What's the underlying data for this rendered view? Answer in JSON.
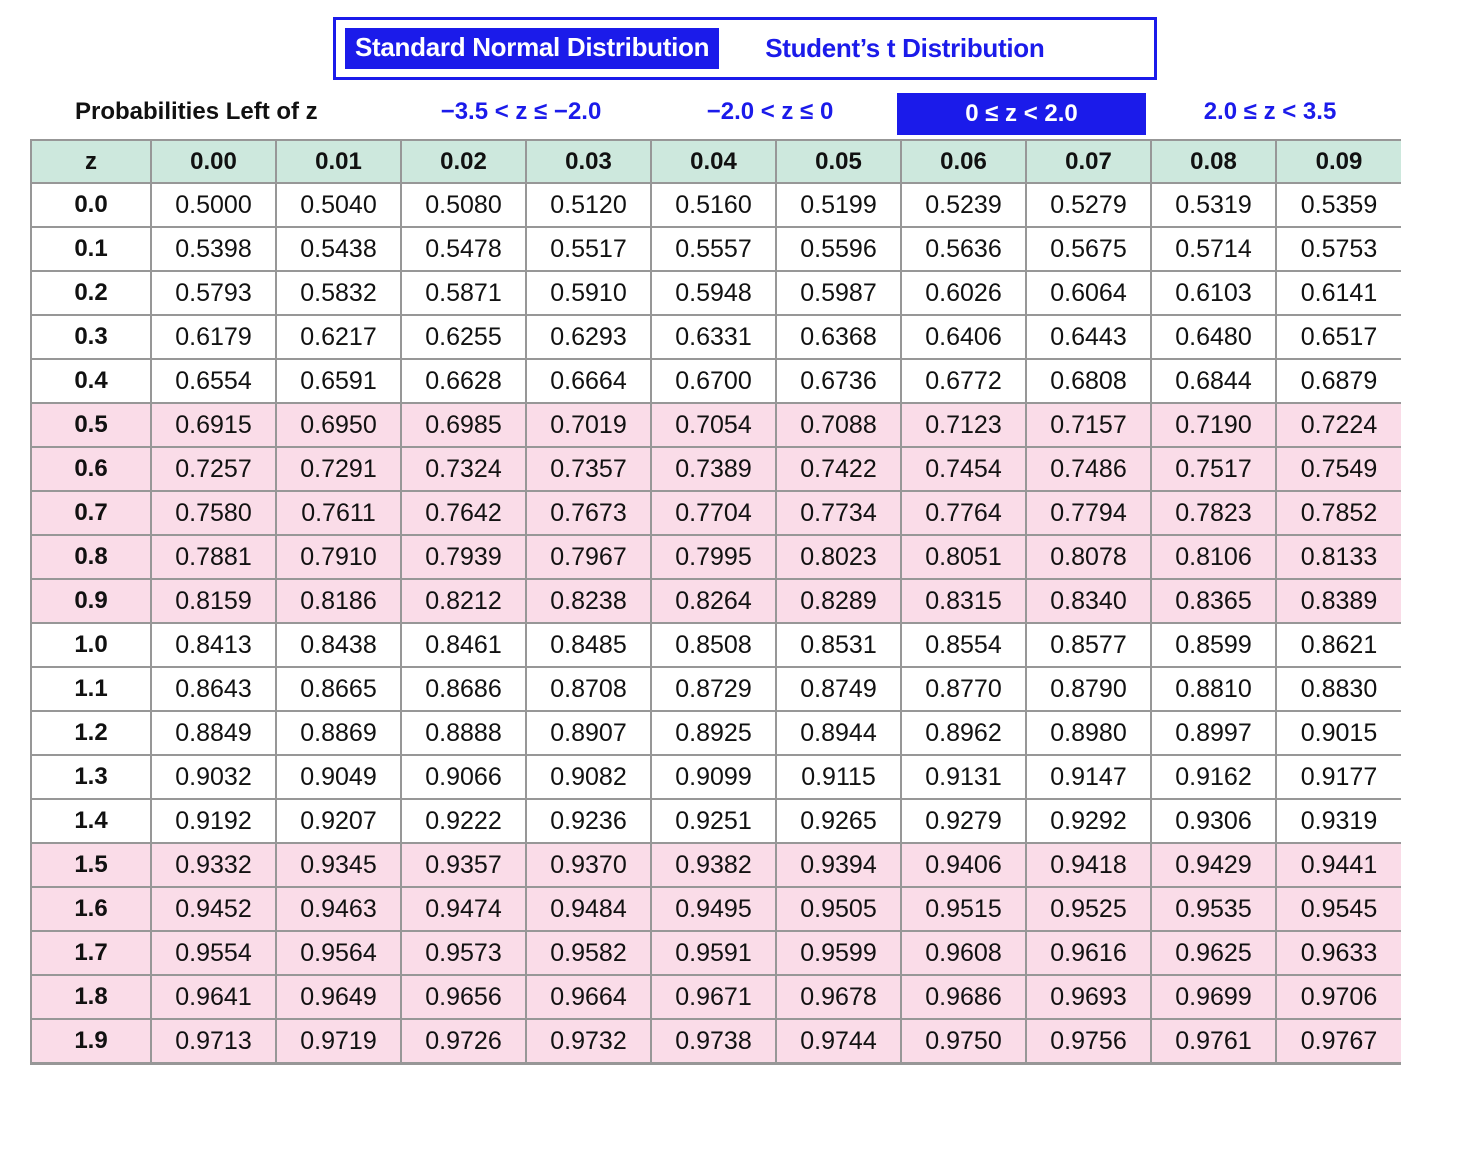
{
  "tabs": [
    {
      "label": "Standard Normal Distribution",
      "selected": true
    },
    {
      "label": "Student’s t Distribution",
      "selected": false
    }
  ],
  "controls": {
    "title": "Probabilities Left of z",
    "ranges": [
      {
        "label": "−3.5 < z ≤ −2.0",
        "selected": false
      },
      {
        "label": "−2.0 < z ≤ 0",
        "selected": false
      },
      {
        "label": "0 ≤ z < 2.0",
        "selected": true
      },
      {
        "label": "2.0 ≤ z < 3.5",
        "selected": false
      }
    ]
  },
  "colors": {
    "accent_blue": "#1b1bea",
    "header_green": "#cde8dd",
    "band_pink": "#fadce8",
    "grid_gray": "#979797"
  },
  "table": {
    "corner_header": "z",
    "col_headers": [
      "0.00",
      "0.01",
      "0.02",
      "0.03",
      "0.04",
      "0.05",
      "0.06",
      "0.07",
      "0.08",
      "0.09"
    ],
    "rows": [
      {
        "z": "0.0",
        "values": [
          "0.5000",
          "0.5040",
          "0.5080",
          "0.5120",
          "0.5160",
          "0.5199",
          "0.5239",
          "0.5279",
          "0.5319",
          "0.5359"
        ]
      },
      {
        "z": "0.1",
        "values": [
          "0.5398",
          "0.5438",
          "0.5478",
          "0.5517",
          "0.5557",
          "0.5596",
          "0.5636",
          "0.5675",
          "0.5714",
          "0.5753"
        ]
      },
      {
        "z": "0.2",
        "values": [
          "0.5793",
          "0.5832",
          "0.5871",
          "0.5910",
          "0.5948",
          "0.5987",
          "0.6026",
          "0.6064",
          "0.6103",
          "0.6141"
        ]
      },
      {
        "z": "0.3",
        "values": [
          "0.6179",
          "0.6217",
          "0.6255",
          "0.6293",
          "0.6331",
          "0.6368",
          "0.6406",
          "0.6443",
          "0.6480",
          "0.6517"
        ]
      },
      {
        "z": "0.4",
        "values": [
          "0.6554",
          "0.6591",
          "0.6628",
          "0.6664",
          "0.6700",
          "0.6736",
          "0.6772",
          "0.6808",
          "0.6844",
          "0.6879"
        ]
      },
      {
        "z": "0.5",
        "values": [
          "0.6915",
          "0.6950",
          "0.6985",
          "0.7019",
          "0.7054",
          "0.7088",
          "0.7123",
          "0.7157",
          "0.7190",
          "0.7224"
        ]
      },
      {
        "z": "0.6",
        "values": [
          "0.7257",
          "0.7291",
          "0.7324",
          "0.7357",
          "0.7389",
          "0.7422",
          "0.7454",
          "0.7486",
          "0.7517",
          "0.7549"
        ]
      },
      {
        "z": "0.7",
        "values": [
          "0.7580",
          "0.7611",
          "0.7642",
          "0.7673",
          "0.7704",
          "0.7734",
          "0.7764",
          "0.7794",
          "0.7823",
          "0.7852"
        ]
      },
      {
        "z": "0.8",
        "values": [
          "0.7881",
          "0.7910",
          "0.7939",
          "0.7967",
          "0.7995",
          "0.8023",
          "0.8051",
          "0.8078",
          "0.8106",
          "0.8133"
        ]
      },
      {
        "z": "0.9",
        "values": [
          "0.8159",
          "0.8186",
          "0.8212",
          "0.8238",
          "0.8264",
          "0.8289",
          "0.8315",
          "0.8340",
          "0.8365",
          "0.8389"
        ]
      },
      {
        "z": "1.0",
        "values": [
          "0.8413",
          "0.8438",
          "0.8461",
          "0.8485",
          "0.8508",
          "0.8531",
          "0.8554",
          "0.8577",
          "0.8599",
          "0.8621"
        ]
      },
      {
        "z": "1.1",
        "values": [
          "0.8643",
          "0.8665",
          "0.8686",
          "0.8708",
          "0.8729",
          "0.8749",
          "0.8770",
          "0.8790",
          "0.8810",
          "0.8830"
        ]
      },
      {
        "z": "1.2",
        "values": [
          "0.8849",
          "0.8869",
          "0.8888",
          "0.8907",
          "0.8925",
          "0.8944",
          "0.8962",
          "0.8980",
          "0.8997",
          "0.9015"
        ]
      },
      {
        "z": "1.3",
        "values": [
          "0.9032",
          "0.9049",
          "0.9066",
          "0.9082",
          "0.9099",
          "0.9115",
          "0.9131",
          "0.9147",
          "0.9162",
          "0.9177"
        ]
      },
      {
        "z": "1.4",
        "values": [
          "0.9192",
          "0.9207",
          "0.9222",
          "0.9236",
          "0.9251",
          "0.9265",
          "0.9279",
          "0.9292",
          "0.9306",
          "0.9319"
        ]
      },
      {
        "z": "1.5",
        "values": [
          "0.9332",
          "0.9345",
          "0.9357",
          "0.9370",
          "0.9382",
          "0.9394",
          "0.9406",
          "0.9418",
          "0.9429",
          "0.9441"
        ]
      },
      {
        "z": "1.6",
        "values": [
          "0.9452",
          "0.9463",
          "0.9474",
          "0.9484",
          "0.9495",
          "0.9505",
          "0.9515",
          "0.9525",
          "0.9535",
          "0.9545"
        ]
      },
      {
        "z": "1.7",
        "values": [
          "0.9554",
          "0.9564",
          "0.9573",
          "0.9582",
          "0.9591",
          "0.9599",
          "0.9608",
          "0.9616",
          "0.9625",
          "0.9633"
        ]
      },
      {
        "z": "1.8",
        "values": [
          "0.9641",
          "0.9649",
          "0.9656",
          "0.9664",
          "0.9671",
          "0.9678",
          "0.9686",
          "0.9693",
          "0.9699",
          "0.9706"
        ]
      },
      {
        "z": "1.9",
        "values": [
          "0.9713",
          "0.9719",
          "0.9726",
          "0.9732",
          "0.9738",
          "0.9744",
          "0.9750",
          "0.9756",
          "0.9761",
          "0.9767"
        ]
      }
    ]
  }
}
